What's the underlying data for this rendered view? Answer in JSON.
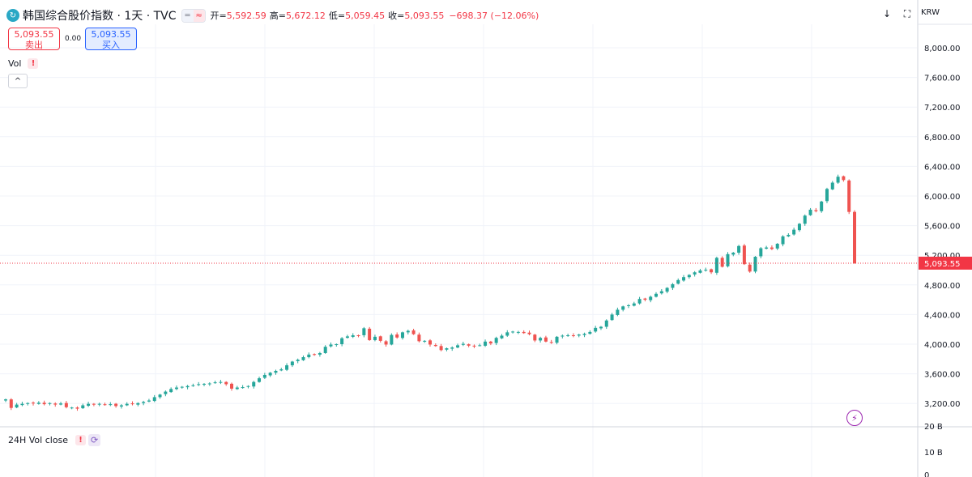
{
  "header": {
    "logo_glyph": "↻",
    "title": "韩国综合股价指数 · 1天 · TVC",
    "pill_left": "═",
    "pill_right": "≈",
    "open_label": "开",
    "open_value": "5,592.59",
    "high_label": "高",
    "high_value": "5,672.12",
    "low_label": "低",
    "low_value": "5,059.45",
    "close_label": "收",
    "close_value": "5,093.55",
    "change": "−698.37 (−12.06%)"
  },
  "trade": {
    "sell_price": "5,093.55",
    "sell_label": "卖出",
    "spread": "0.00",
    "buy_price": "5,093.55",
    "buy_label": "买入"
  },
  "volume_legend": {
    "label": "Vol",
    "warning": "!",
    "collapse_glyph": "^"
  },
  "toolbar": {
    "download_icon": "↓",
    "fullscreen_icon": "⛶",
    "currency": "KRW"
  },
  "indicator_pane": {
    "label": "24H Vol close",
    "warning": "!",
    "sync_icon": "⟳",
    "scale_labels": [
      "20 B",
      "10 B",
      "0"
    ]
  },
  "colors": {
    "up": "#26a69a",
    "down": "#ef5350",
    "price_line": "#f23645",
    "accent": "#2962ff"
  },
  "chart_data": {
    "type": "candlestick",
    "symbol": "韩国综合股价指数",
    "interval": "1天",
    "source": "TVC",
    "currency": "KRW",
    "ylim": [
      2900,
      8300
    ],
    "y_ticks": [
      3200,
      3600,
      4000,
      4400,
      4800,
      5200,
      5600,
      6000,
      6400,
      6800,
      7200,
      7600,
      8000
    ],
    "y_tick_labels": [
      "3,200.00",
      "3,600.00",
      "4,000.00",
      "4,400.00",
      "4,800.00",
      "5,200.00",
      "5,600.00",
      "6,000.00",
      "6,400.00",
      "6,800.00",
      "7,200.00",
      "7,600.00",
      "8,000.00"
    ],
    "last_price": 5093.55,
    "last_price_label": "5,093.55",
    "closes": [
      3255,
      3140,
      3185,
      3195,
      3205,
      3200,
      3210,
      3190,
      3205,
      3185,
      3200,
      3150,
      3145,
      3130,
      3175,
      3195,
      3185,
      3195,
      3180,
      3190,
      3165,
      3175,
      3195,
      3190,
      3205,
      3220,
      3240,
      3285,
      3320,
      3360,
      3395,
      3415,
      3425,
      3435,
      3445,
      3460,
      3465,
      3470,
      3485,
      3490,
      3460,
      3400,
      3415,
      3420,
      3435,
      3490,
      3540,
      3585,
      3615,
      3640,
      3660,
      3715,
      3765,
      3790,
      3825,
      3860,
      3865,
      3880,
      3965,
      3995,
      4000,
      4080,
      4105,
      4120,
      4115,
      4215,
      4055,
      4100,
      4045,
      3995,
      4125,
      4090,
      4160,
      4180,
      4135,
      4040,
      4045,
      3995,
      3975,
      3920,
      3945,
      3955,
      3985,
      4005,
      3980,
      3975,
      3985,
      4035,
      4010,
      4085,
      4115,
      4160,
      4170,
      4165,
      4150,
      4135,
      4050,
      4085,
      4035,
      4020,
      4100,
      4115,
      4120,
      4110,
      4130,
      4140,
      4165,
      4220,
      4235,
      4320,
      4400,
      4465,
      4510,
      4525,
      4550,
      4610,
      4600,
      4640,
      4680,
      4715,
      4760,
      4810,
      4865,
      4905,
      4935,
      4970,
      4995,
      5005,
      4970,
      5165,
      5045,
      5215,
      5235,
      5325,
      5080,
      4980,
      5180,
      5295,
      5305,
      5285,
      5355,
      5455,
      5475,
      5545,
      5625,
      5735,
      5815,
      5795,
      5925,
      6095,
      6180,
      6260,
      6215,
      5785,
      5093.55
    ],
    "series_note": "Daily candles, reproduced approximately from close prices"
  }
}
